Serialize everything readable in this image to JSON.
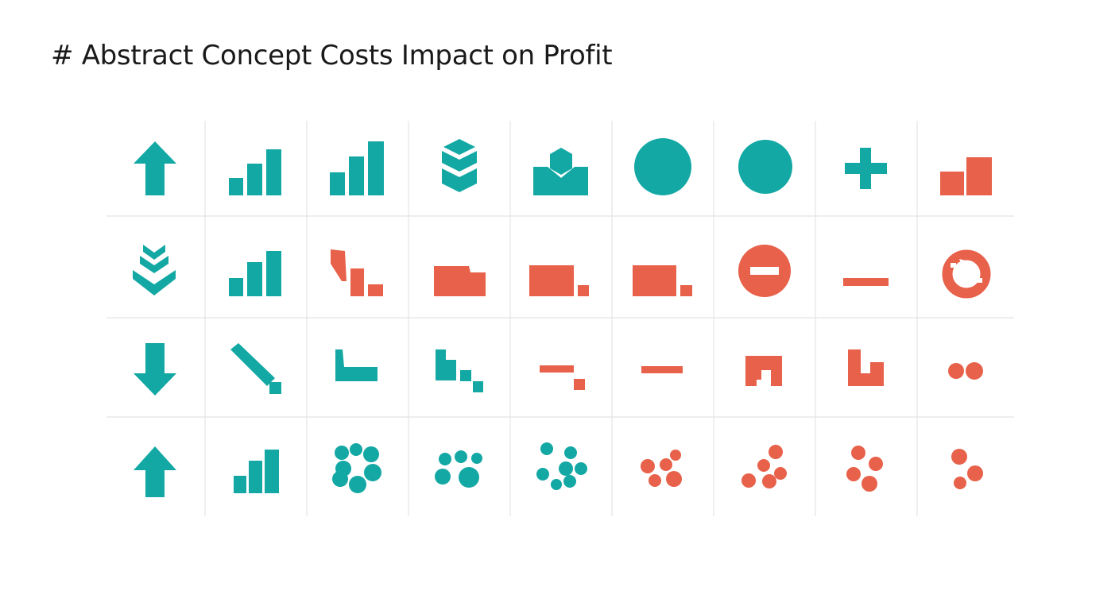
{
  "title": "# Abstract Concept Costs Impact on Profit",
  "colors": {
    "teal": "#13A8A4",
    "coral": "#E8614A",
    "gridline": "#E4E4E4",
    "text": "#1A1A1A"
  },
  "grid": {
    "rows": 4,
    "cols": 9,
    "icons": [
      [
        {
          "name": "arrow-up-icon",
          "color": "teal"
        },
        {
          "name": "bar-chart-rising-icon",
          "color": "teal"
        },
        {
          "name": "bar-chart-rising-icon",
          "color": "teal"
        },
        {
          "name": "stacked-hexagon-layers-icon",
          "color": "teal"
        },
        {
          "name": "hexagon-on-tray-icon",
          "color": "teal"
        },
        {
          "name": "circle-icon",
          "color": "teal"
        },
        {
          "name": "circle-icon",
          "color": "teal"
        },
        {
          "name": "plus-icon",
          "color": "teal"
        },
        {
          "name": "two-bars-icon",
          "color": "coral"
        }
      ],
      [
        {
          "name": "triple-chevron-down-icon",
          "color": "teal"
        },
        {
          "name": "bar-chart-rising-icon",
          "color": "teal"
        },
        {
          "name": "descending-blocks-icon",
          "color": "coral"
        },
        {
          "name": "folder-block-icon",
          "color": "coral"
        },
        {
          "name": "block-with-small-square-icon",
          "color": "coral"
        },
        {
          "name": "block-with-small-square-icon",
          "color": "coral"
        },
        {
          "name": "no-entry-icon",
          "color": "coral"
        },
        {
          "name": "minus-icon",
          "color": "coral"
        },
        {
          "name": "circular-refresh-icon",
          "color": "coral"
        }
      ],
      [
        {
          "name": "arrow-down-icon",
          "color": "teal"
        },
        {
          "name": "diagonal-decline-icon",
          "color": "teal"
        },
        {
          "name": "l-shape-icon",
          "color": "teal"
        },
        {
          "name": "staircase-down-icon",
          "color": "teal"
        },
        {
          "name": "step-dash-icon",
          "color": "coral"
        },
        {
          "name": "minus-icon",
          "color": "coral"
        },
        {
          "name": "arch-block-icon",
          "color": "coral"
        },
        {
          "name": "u-block-icon",
          "color": "coral"
        },
        {
          "name": "two-dots-icon",
          "color": "coral"
        }
      ],
      [
        {
          "name": "arrow-up-icon",
          "color": "teal"
        },
        {
          "name": "bar-chart-rising-icon",
          "color": "teal"
        },
        {
          "name": "dot-cluster-icon",
          "color": "teal"
        },
        {
          "name": "dot-cluster-icon",
          "color": "teal"
        },
        {
          "name": "dot-cluster-icon",
          "color": "teal"
        },
        {
          "name": "dot-cluster-icon",
          "color": "coral"
        },
        {
          "name": "dot-cluster-icon",
          "color": "coral"
        },
        {
          "name": "dot-cluster-icon",
          "color": "coral"
        },
        {
          "name": "dot-cluster-icon",
          "color": "coral"
        }
      ]
    ]
  }
}
